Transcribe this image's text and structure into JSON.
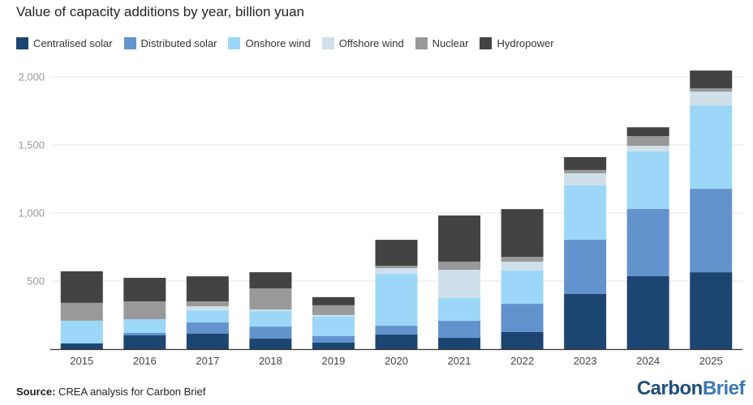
{
  "chart_data": {
    "type": "bar",
    "stacked": true,
    "title": "Value of capacity additions by year, billion yuan",
    "xlabel": "",
    "ylabel": "",
    "ylim": [
      0,
      2000
    ],
    "yticks": [
      0,
      500,
      1000,
      1500,
      2000
    ],
    "ytick_labels": [
      "",
      "500",
      "1,000",
      "1,500",
      "2,000"
    ],
    "grid": true,
    "legend_position": "top-left",
    "categories": [
      "2015",
      "2016",
      "2017",
      "2018",
      "2019",
      "2020",
      "2021",
      "2022",
      "2023",
      "2024",
      "2025"
    ],
    "series": [
      {
        "name": "Centralised solar",
        "color": "#1d4571",
        "values": [
          42,
          101,
          113,
          77,
          48,
          107,
          83,
          125,
          405,
          536,
          565
        ]
      },
      {
        "name": "Distributed solar",
        "color": "#6393cc",
        "values": [
          0,
          18,
          83,
          89,
          48,
          65,
          125,
          208,
          399,
          494,
          613
        ]
      },
      {
        "name": "Onshore wind",
        "color": "#9cd7f8",
        "values": [
          167,
          101,
          89,
          113,
          143,
          381,
          167,
          244,
          399,
          422,
          613
        ]
      },
      {
        "name": "Offshore wind",
        "color": "#cfe0ea",
        "values": [
          0,
          0,
          30,
          12,
          12,
          42,
          208,
          65,
          89,
          42,
          101
        ]
      },
      {
        "name": "Nuclear",
        "color": "#999999",
        "values": [
          131,
          131,
          36,
          155,
          71,
          18,
          60,
          36,
          24,
          71,
          24
        ]
      },
      {
        "name": "Hydropower",
        "color": "#434343",
        "values": [
          232,
          173,
          184,
          119,
          60,
          190,
          339,
          351,
          95,
          65,
          131
        ]
      }
    ]
  },
  "footer": {
    "source_label": "Source:",
    "source_text": " CREA analysis for Carbon Brief",
    "logo_part1": "Carbon",
    "logo_part2": "Brief"
  }
}
